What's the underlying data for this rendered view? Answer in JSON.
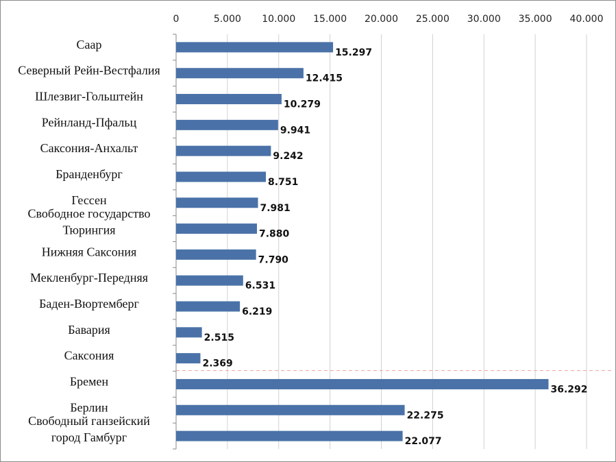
{
  "chart_data": {
    "type": "bar",
    "orientation": "horizontal",
    "title": "",
    "xlabel": "",
    "ylabel": "",
    "xlim": [
      0,
      40000
    ],
    "x_ticks": [
      "0",
      "5.000",
      "10.000",
      "15.000",
      "20.000",
      "25.000",
      "30.000",
      "35.000",
      "40.000"
    ],
    "x_tick_values": [
      0,
      5000,
      10000,
      15000,
      20000,
      25000,
      30000,
      35000,
      40000
    ],
    "x_axis_position": "top",
    "grid": true,
    "categories": [
      [
        "Саар"
      ],
      [
        "Северный Рейн-Вестфалия"
      ],
      [
        "Шлезвиг-Гольштейн"
      ],
      [
        "Рейнланд-Пфальц"
      ],
      [
        "Саксония-Анхальт"
      ],
      [
        "Бранденбург"
      ],
      [
        "Гессен"
      ],
      [
        "Свободное государство",
        "Тюрингия"
      ],
      [
        "Нижняя Саксония"
      ],
      [
        "Мекленбург-Передняя"
      ],
      [
        "Баден-Вюртемберг"
      ],
      [
        "Бавария"
      ],
      [
        "Саксония"
      ],
      [
        "Бремен"
      ],
      [
        "Берлин"
      ],
      [
        "Свободный ганзейский",
        "город Гамбург"
      ]
    ],
    "values": [
      15297,
      12415,
      10279,
      9941,
      9242,
      8751,
      7981,
      7880,
      7790,
      6531,
      6219,
      2515,
      2369,
      36292,
      22275,
      22077
    ],
    "value_labels": [
      "15.297",
      "12.415",
      "10.279",
      "9.941",
      "9.242",
      "8.751",
      "7.981",
      "7.880",
      "7.790",
      "6.531",
      "6.219",
      "2.515",
      "2.369",
      "36.292",
      "22.275",
      "22.077"
    ],
    "separator_after_index": 12,
    "colors": {
      "bar": "#4a72a8",
      "grid": "#d0d0d0",
      "separator": "#f0a0a0"
    }
  }
}
